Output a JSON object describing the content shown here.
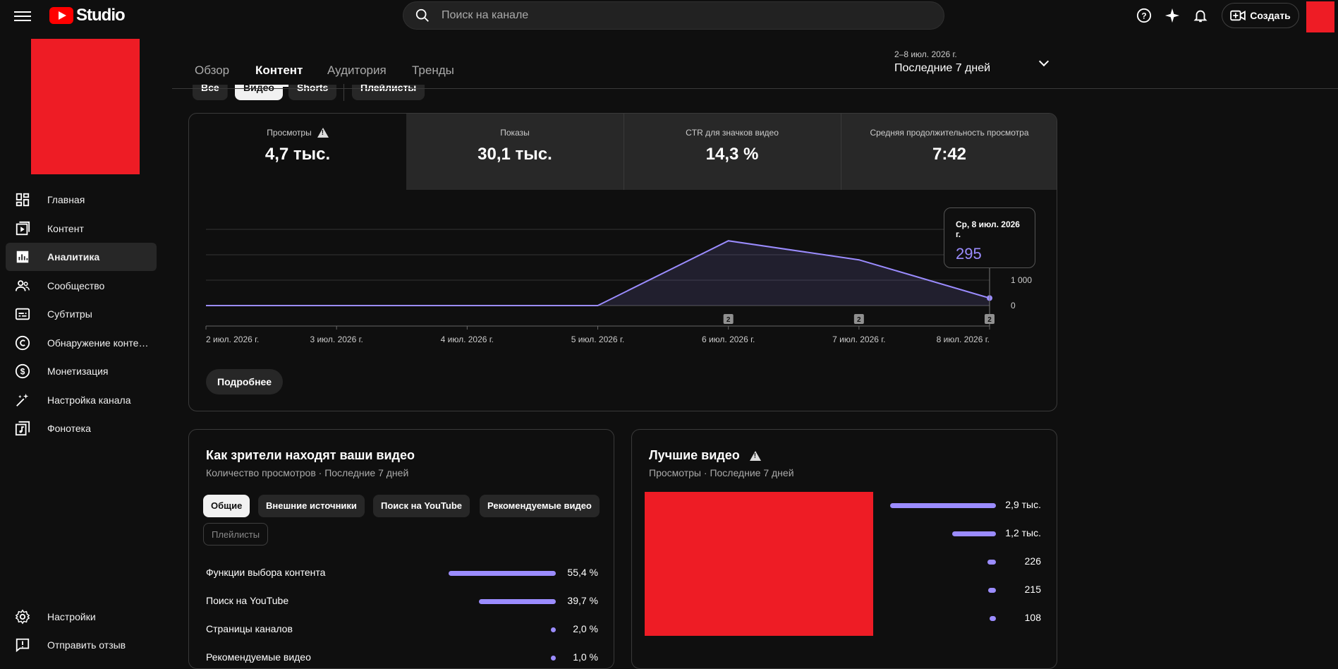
{
  "header": {
    "logo_text": "Studio",
    "search_placeholder": "Поиск на канале",
    "create_label": "Создать"
  },
  "sidebar": {
    "items": [
      {
        "label": "Главная",
        "icon": "dashboard-icon"
      },
      {
        "label": "Контент",
        "icon": "content-icon"
      },
      {
        "label": "Аналитика",
        "icon": "analytics-icon",
        "active": true
      },
      {
        "label": "Сообщество",
        "icon": "community-icon"
      },
      {
        "label": "Субтитры",
        "icon": "subtitles-icon"
      },
      {
        "label": "Обнаружение контента",
        "icon": "copyright-icon"
      },
      {
        "label": "Монетизация",
        "icon": "monetization-icon"
      },
      {
        "label": "Настройка канала",
        "icon": "customization-icon"
      },
      {
        "label": "Фонотека",
        "icon": "audio-library-icon"
      }
    ],
    "settings_label": "Настройки",
    "feedback_label": "Отправить отзыв"
  },
  "tabs": [
    "Обзор",
    "Контент",
    "Аудитория",
    "Тренды"
  ],
  "active_tab": "Контент",
  "date_range": {
    "range": "2–8 июл. 2026 г.",
    "label": "Последние 7 дней"
  },
  "content_chips": [
    "Все",
    "Видео",
    "Shorts",
    "Плейлисты"
  ],
  "metrics": [
    {
      "label": "Просмотры",
      "value": "4,7 тыс.",
      "warning": true
    },
    {
      "label": "Показы",
      "value": "30,1 тыс."
    },
    {
      "label": "CTR для значков видео",
      "value": "14,3 %"
    },
    {
      "label": "Средняя продолжительность просмотра",
      "value": "7:42"
    }
  ],
  "chart_data": {
    "type": "area",
    "x": [
      "2 июл. 2026 г.",
      "3 июл. 2026 г.",
      "4 июл. 2026 г.",
      "5 июл. 2026 г.",
      "6 июл. 2026 г.",
      "7 июл. 2026 г.",
      "8 июл. 2026 г."
    ],
    "values": [
      0,
      0,
      0,
      0,
      2550,
      1800,
      295
    ],
    "y_ticks": [
      "0",
      "1 000"
    ],
    "ylim": [
      0,
      3000
    ],
    "markers": [
      {
        "x": "6 июл. 2026 г.",
        "label": "2"
      },
      {
        "x": "7 июл. 2026 г.",
        "label": "2"
      },
      {
        "x": "8 июл. 2026 г.",
        "label": "2"
      }
    ],
    "tooltip": {
      "date": "Ср, 8 июл. 2026 г.",
      "value": "295"
    },
    "color": "#9b8cff"
  },
  "more_button": "Подробнее",
  "traffic": {
    "title": "Как зрители находят ваши видео",
    "subtitle": "Количество просмотров · Последние 7 дней",
    "chips": [
      "Общие",
      "Внешние источники",
      "Поиск на YouTube",
      "Рекомендуемые видео",
      "Плейлисты"
    ],
    "rows": [
      {
        "label": "Функции выбора контента",
        "value": "55,4 %",
        "pct": 55.4
      },
      {
        "label": "Поиск на YouTube",
        "value": "39,7 %",
        "pct": 39.7
      },
      {
        "label": "Страницы каналов",
        "value": "2,0 %",
        "pct": 2.0
      },
      {
        "label": "Рекомендуемые видео",
        "value": "1,0 %",
        "pct": 1.0
      }
    ]
  },
  "best": {
    "title": "Лучшие видео",
    "subtitle": "Просмотры · Последние 7 дней",
    "rows": [
      {
        "value": "2,9 тыс.",
        "n": 2900
      },
      {
        "value": "1,2 тыс.",
        "n": 1200
      },
      {
        "value": "226",
        "n": 226
      },
      {
        "value": "215",
        "n": 215
      },
      {
        "value": "108",
        "n": 108
      }
    ]
  }
}
